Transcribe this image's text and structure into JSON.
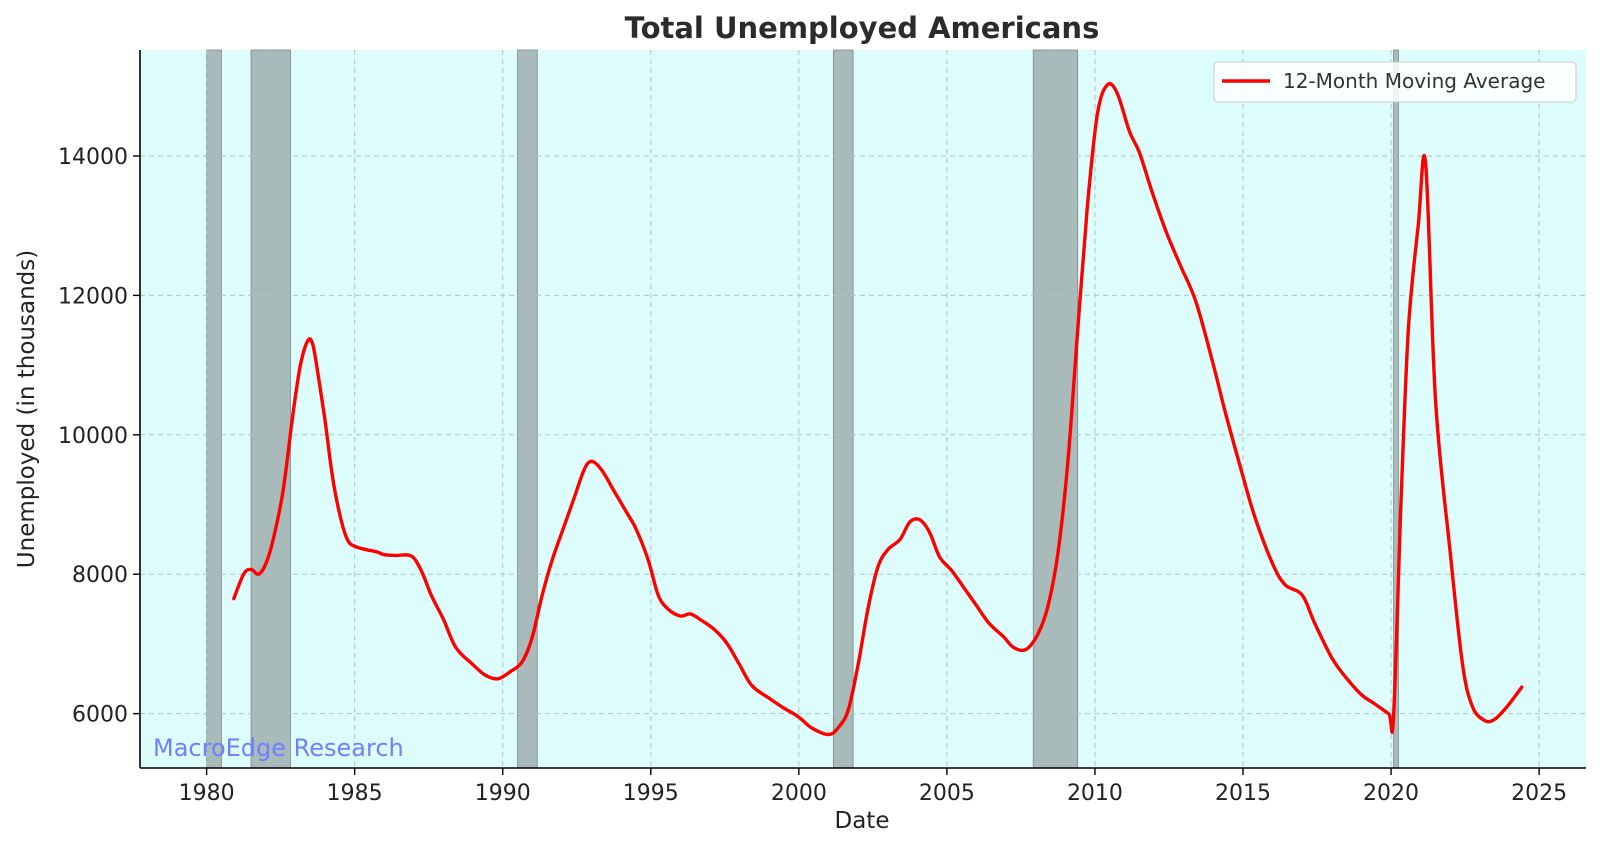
{
  "chart_data": {
    "type": "line",
    "title": "Total Unemployed Americans",
    "xlabel": "Date",
    "ylabel": "Unemployed (in thousands)",
    "xlim": [
      "1977-10-01",
      "2026-08-01"
    ],
    "ylim": [
      5220,
      15520
    ],
    "xticks": [
      "1980",
      "1985",
      "1990",
      "1995",
      "2000",
      "2005",
      "2010",
      "2015",
      "2020",
      "2025"
    ],
    "yticks": [
      6000,
      8000,
      10000,
      12000,
      14000
    ],
    "grid": true,
    "legend_position": "top-right",
    "background_color": "#ddfcfc",
    "recession_color": "#9aa6a6",
    "recessions": [
      {
        "start": "1980-01-01",
        "end": "1980-07-01"
      },
      {
        "start": "1981-07-01",
        "end": "1982-11-01"
      },
      {
        "start": "1990-07-01",
        "end": "1991-03-01"
      },
      {
        "start": "2001-03-01",
        "end": "2001-11-01"
      },
      {
        "start": "2007-12-01",
        "end": "2009-06-01"
      },
      {
        "start": "2020-02-01",
        "end": "2020-04-01"
      }
    ],
    "series": [
      {
        "name": "12-Month Moving Average",
        "color": "#ff0000",
        "points": [
          [
            "1980-12",
            7650
          ],
          [
            "1981-04",
            8000
          ],
          [
            "1981-07",
            8070
          ],
          [
            "1981-10",
            8000
          ],
          [
            "1982-01",
            8150
          ],
          [
            "1982-04",
            8500
          ],
          [
            "1982-08",
            9200
          ],
          [
            "1982-12",
            10300
          ],
          [
            "1983-03",
            11000
          ],
          [
            "1983-06",
            11350
          ],
          [
            "1983-08",
            11300
          ],
          [
            "1983-10",
            10900
          ],
          [
            "1984-01",
            10200
          ],
          [
            "1984-04",
            9400
          ],
          [
            "1984-07",
            8850
          ],
          [
            "1984-10",
            8500
          ],
          [
            "1985-01",
            8400
          ],
          [
            "1985-06",
            8350
          ],
          [
            "1985-10",
            8320
          ],
          [
            "1986-01",
            8280
          ],
          [
            "1986-06",
            8270
          ],
          [
            "1986-12",
            8260
          ],
          [
            "1987-04",
            8050
          ],
          [
            "1987-08",
            7700
          ],
          [
            "1988-01",
            7350
          ],
          [
            "1988-06",
            6950
          ],
          [
            "1989-01",
            6700
          ],
          [
            "1989-06",
            6550
          ],
          [
            "1989-11",
            6500
          ],
          [
            "1990-04",
            6600
          ],
          [
            "1990-09",
            6750
          ],
          [
            "1991-01",
            7100
          ],
          [
            "1991-05",
            7700
          ],
          [
            "1991-09",
            8200
          ],
          [
            "1992-02",
            8700
          ],
          [
            "1992-06",
            9100
          ],
          [
            "1992-10",
            9500
          ],
          [
            "1993-01",
            9620
          ],
          [
            "1993-05",
            9500
          ],
          [
            "1993-10",
            9200
          ],
          [
            "1994-03",
            8900
          ],
          [
            "1994-07",
            8650
          ],
          [
            "1994-12",
            8200
          ],
          [
            "1995-04",
            7700
          ],
          [
            "1995-08",
            7500
          ],
          [
            "1996-01",
            7400
          ],
          [
            "1996-05",
            7430
          ],
          [
            "1996-09",
            7350
          ],
          [
            "1997-03",
            7200
          ],
          [
            "1997-08",
            7000
          ],
          [
            "1998-01",
            6700
          ],
          [
            "1998-06",
            6400
          ],
          [
            "1999-01",
            6220
          ],
          [
            "1999-06",
            6100
          ],
          [
            "2000-01",
            5950
          ],
          [
            "2000-06",
            5800
          ],
          [
            "2001-01",
            5700
          ],
          [
            "2001-05",
            5800
          ],
          [
            "2001-09",
            6050
          ],
          [
            "2002-01",
            6700
          ],
          [
            "2002-05",
            7500
          ],
          [
            "2002-09",
            8100
          ],
          [
            "2003-01",
            8350
          ],
          [
            "2003-06",
            8500
          ],
          [
            "2003-10",
            8750
          ],
          [
            "2004-02",
            8780
          ],
          [
            "2004-06",
            8600
          ],
          [
            "2004-10",
            8250
          ],
          [
            "2005-03",
            8050
          ],
          [
            "2005-08",
            7800
          ],
          [
            "2006-01",
            7550
          ],
          [
            "2006-06",
            7300
          ],
          [
            "2006-12",
            7100
          ],
          [
            "2007-04",
            6950
          ],
          [
            "2007-09",
            6920
          ],
          [
            "2008-02",
            7150
          ],
          [
            "2008-06",
            7550
          ],
          [
            "2008-10",
            8300
          ],
          [
            "2009-02",
            9600
          ],
          [
            "2009-06",
            11500
          ],
          [
            "2009-10",
            13300
          ],
          [
            "2010-02",
            14600
          ],
          [
            "2010-06",
            15020
          ],
          [
            "2010-10",
            14900
          ],
          [
            "2011-03",
            14350
          ],
          [
            "2011-07",
            14050
          ],
          [
            "2011-12",
            13500
          ],
          [
            "2012-06",
            12900
          ],
          [
            "2012-12",
            12400
          ],
          [
            "2013-06",
            11900
          ],
          [
            "2014-01",
            11000
          ],
          [
            "2014-06",
            10300
          ],
          [
            "2015-01",
            9400
          ],
          [
            "2015-06",
            8800
          ],
          [
            "2016-01",
            8150
          ],
          [
            "2016-06",
            7850
          ],
          [
            "2017-01",
            7700
          ],
          [
            "2017-06",
            7300
          ],
          [
            "2018-01",
            6800
          ],
          [
            "2018-06",
            6550
          ],
          [
            "2019-01",
            6270
          ],
          [
            "2019-06",
            6150
          ],
          [
            "2019-12",
            6000
          ],
          [
            "2020-02",
            5950
          ],
          [
            "2020-05",
            9000
          ],
          [
            "2020-08",
            11500
          ],
          [
            "2020-12",
            13000
          ],
          [
            "2021-03",
            13900
          ],
          [
            "2021-07",
            10500
          ],
          [
            "2022-01",
            8300
          ],
          [
            "2022-06",
            6700
          ],
          [
            "2022-10",
            6100
          ],
          [
            "2023-03",
            5900
          ],
          [
            "2023-07",
            5920
          ],
          [
            "2023-12",
            6100
          ],
          [
            "2024-06",
            6380
          ]
        ]
      }
    ],
    "watermark": "MacroEdge Research",
    "watermark_color": "#7080ff"
  }
}
